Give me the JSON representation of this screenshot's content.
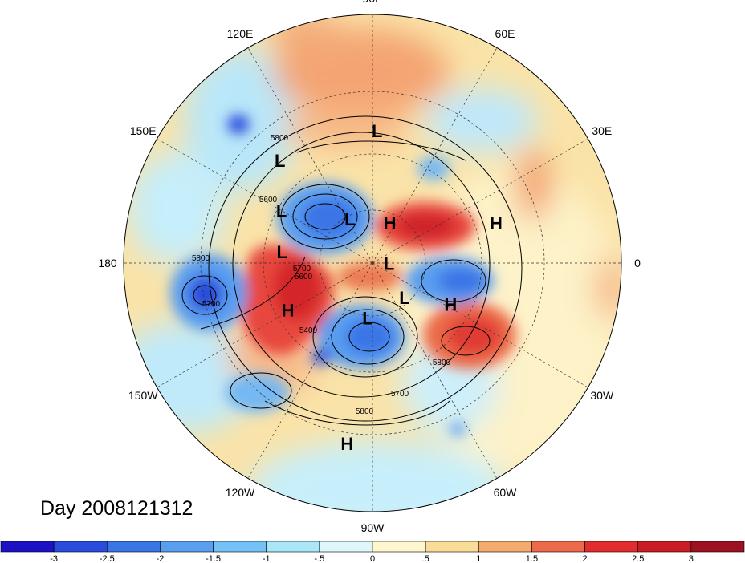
{
  "title": "Day 2008121312",
  "longitude_labels": [
    {
      "text": "90E",
      "lon": 90
    },
    {
      "text": "60E",
      "lon": 60
    },
    {
      "text": "30E",
      "lon": 30
    },
    {
      "text": "0",
      "lon": 0
    },
    {
      "text": "30W",
      "lon": -30
    },
    {
      "text": "60W",
      "lon": -60
    },
    {
      "text": "90W",
      "lon": -90
    },
    {
      "text": "120W",
      "lon": -120
    },
    {
      "text": "150W",
      "lon": -150
    },
    {
      "text": "180",
      "lon": 180
    },
    {
      "text": "150E",
      "lon": 150
    },
    {
      "text": "120E",
      "lon": 120
    }
  ],
  "pressure_centers": [
    {
      "text": "L",
      "type": "low",
      "lon": 88,
      "lat": 42
    },
    {
      "text": "L",
      "type": "low",
      "lon": 132,
      "lat": 40
    },
    {
      "text": "L",
      "type": "low",
      "lon": 150,
      "lat": 52
    },
    {
      "text": "H",
      "type": "high",
      "lon": 67,
      "lat": 74
    },
    {
      "text": "H",
      "type": "high",
      "lon": 18,
      "lat": 43
    },
    {
      "text": "L",
      "type": "low",
      "lon": 117,
      "lat": 72
    },
    {
      "text": "L",
      "type": "low",
      "lon": -1,
      "lat": 84
    },
    {
      "text": "L",
      "type": "low",
      "lon": 173,
      "lat": 57
    },
    {
      "text": "L",
      "type": "low",
      "lon": -47,
      "lat": 73
    },
    {
      "text": "H",
      "type": "high",
      "lon": -28,
      "lat": 58
    },
    {
      "text": "L",
      "type": "low",
      "lon": -95,
      "lat": 70
    },
    {
      "text": "H",
      "type": "high",
      "lon": -151,
      "lat": 55
    },
    {
      "text": "H",
      "type": "high",
      "lon": -98,
      "lat": 24
    }
  ],
  "contour_labels": [
    "5800",
    "5600",
    "5700",
    "5600",
    "5400",
    "5700",
    "5800",
    "5700",
    "5800",
    "5800"
  ],
  "colorbar": {
    "ticks": [
      "-3",
      "-2.5",
      "-2",
      "-1.5",
      "-1",
      "-.5",
      "0",
      ".5",
      "1",
      "1.5",
      "2",
      "2.5",
      "3"
    ],
    "colors": [
      "#1c11c5",
      "#2a4cdc",
      "#3a75e6",
      "#5a9ef0",
      "#74c2f5",
      "#a8e6f8",
      "#dff7fb",
      "#fdf6cf",
      "#f9dc98",
      "#f4ab6e",
      "#ec6a4a",
      "#e12d2d",
      "#c91d23",
      "#9e1120"
    ]
  }
}
